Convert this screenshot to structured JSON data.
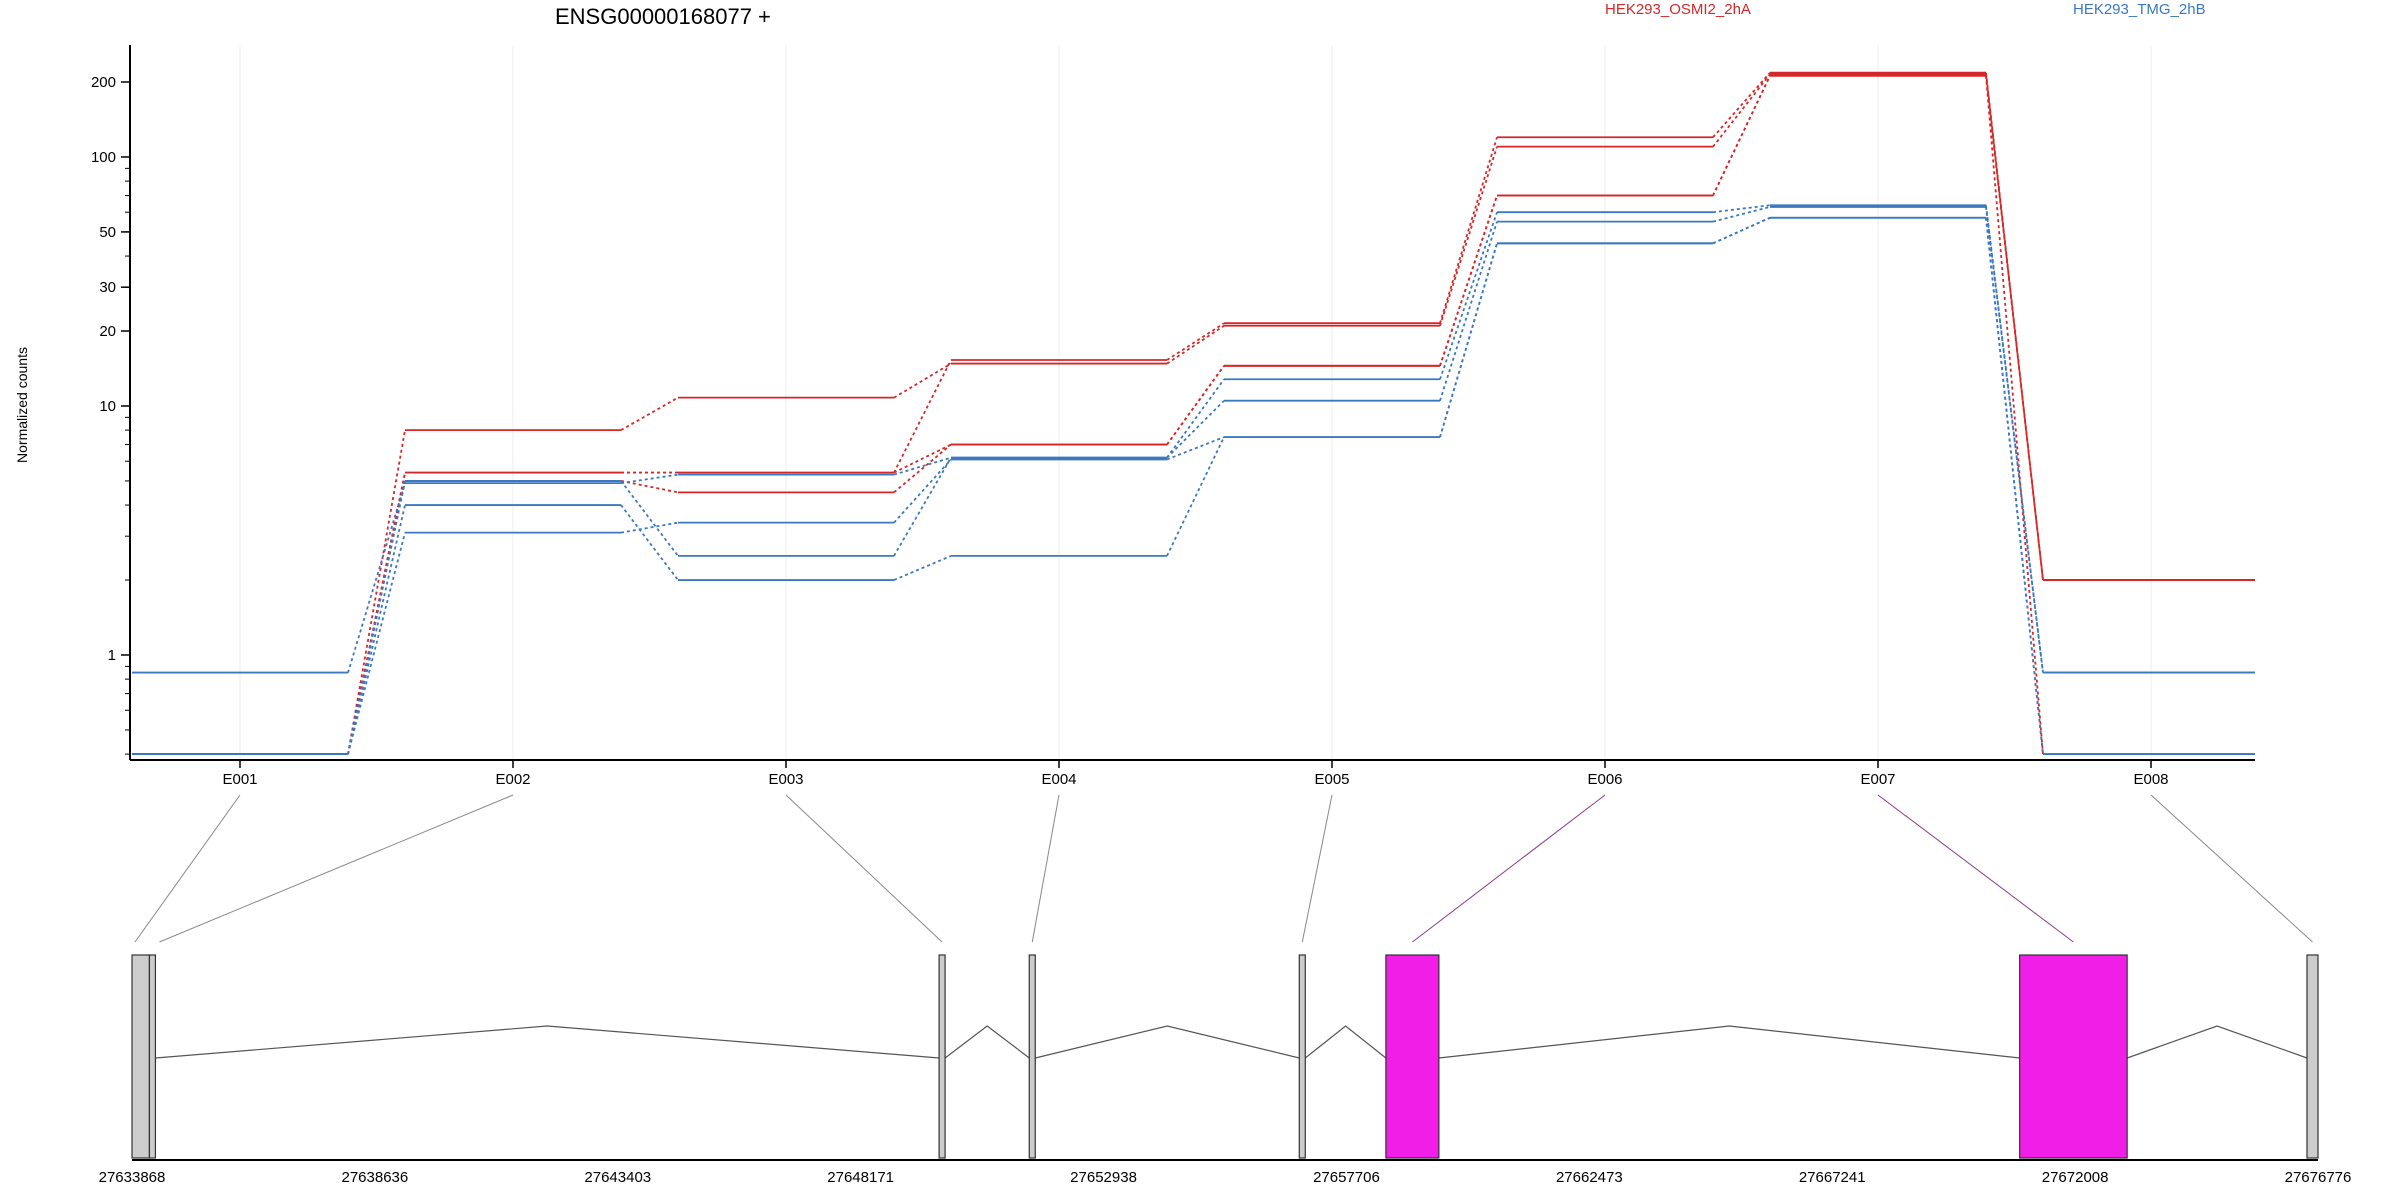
{
  "title": "ENSG00000168077 +",
  "legend": [
    {
      "name": "HEK293_OSMI2_2hA",
      "color": "#d62728"
    },
    {
      "name": "HEK293_TMG_2hB",
      "color": "#3a78c0"
    }
  ],
  "ylabel": "Normalized counts",
  "colors": {
    "osmi": "#d62728",
    "tmg": "#3a78c0",
    "exon_fill": "#cccccc",
    "exon_highlight": "#f01ee6",
    "axis": "#000000",
    "grid": "#eeeeee"
  },
  "chart_data": {
    "type": "line",
    "y_scale": "log",
    "ylim": [
      0.4,
      260
    ],
    "yticks": [
      1,
      10,
      20,
      30,
      50,
      100,
      200
    ],
    "categories": [
      "E001",
      "E002",
      "E003",
      "E004",
      "E005",
      "E006",
      "E007",
      "E008"
    ],
    "series": [
      {
        "group": "osmi",
        "values": [
          0.4,
          8.0,
          10.8,
          14.8,
          21.0,
          110,
          215,
          2.0
        ]
      },
      {
        "group": "osmi",
        "values": [
          0.4,
          5.4,
          5.4,
          15.3,
          21.5,
          120,
          218,
          2.0
        ]
      },
      {
        "group": "osmi",
        "values": [
          0.4,
          5.4,
          5.4,
          7.0,
          14.5,
          70,
          212,
          2.0
        ]
      },
      {
        "group": "osmi",
        "values": [
          0.4,
          5.0,
          4.5,
          7.0,
          14.5,
          70,
          212,
          0.4
        ]
      },
      {
        "group": "tmg",
        "values": [
          0.85,
          4.9,
          5.3,
          6.2,
          10.5,
          55,
          63,
          0.85
        ]
      },
      {
        "group": "tmg",
        "values": [
          0.4,
          5.0,
          2.5,
          6.2,
          12.8,
          60,
          64,
          0.85
        ]
      },
      {
        "group": "tmg",
        "values": [
          0.4,
          4.0,
          2.0,
          2.5,
          7.5,
          45,
          57,
          0.4
        ]
      },
      {
        "group": "tmg",
        "values": [
          0.4,
          3.1,
          3.4,
          6.1,
          7.5,
          45,
          57,
          0.4
        ]
      }
    ]
  },
  "gene_model": {
    "coord_min": 27633868,
    "coord_max": 27676776,
    "coord_ticks": [
      "27633868",
      "27638636",
      "27643403",
      "27648171",
      "27652938",
      "27657706",
      "27662473",
      "27667241",
      "27672008",
      "27676776"
    ],
    "exons": [
      {
        "name": "E001",
        "start": 27633868,
        "end": 27634210,
        "highlight": false
      },
      {
        "name": "E002",
        "start": 27634210,
        "end": 27634230,
        "highlight": false
      },
      {
        "name": "E003",
        "start": 27649710,
        "end": 27649820,
        "highlight": false
      },
      {
        "name": "E004",
        "start": 27651480,
        "end": 27651590,
        "highlight": false
      },
      {
        "name": "E005",
        "start": 27656780,
        "end": 27656890,
        "highlight": false
      },
      {
        "name": "E006",
        "start": 27658480,
        "end": 27659520,
        "highlight": true
      },
      {
        "name": "E007",
        "start": 27670920,
        "end": 27673030,
        "highlight": true
      },
      {
        "name": "E008",
        "start": 27676560,
        "end": 27676776,
        "highlight": false
      }
    ]
  }
}
